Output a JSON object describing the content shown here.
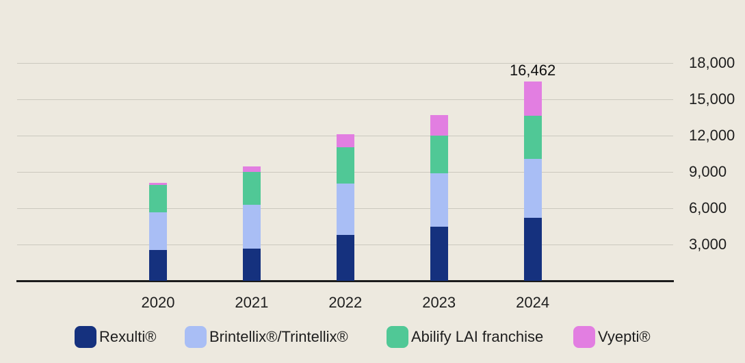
{
  "colors": {
    "background": "#EDE9DF",
    "gridline": "#CBC8BE",
    "axis_line": "#1B1B1B",
    "text": "#1E1E1E",
    "annotation_text": "#101010"
  },
  "chart_data": {
    "type": "bar",
    "stacked": true,
    "title": "",
    "xlabel": "",
    "ylabel": "",
    "categories": [
      "2020",
      "2021",
      "2022",
      "2023",
      "2024"
    ],
    "series": [
      {
        "name": "Rexulti®",
        "slug": "rexulti",
        "color": "#15317E",
        "values": [
          2550,
          2680,
          3780,
          4490,
          5200
        ]
      },
      {
        "name": "Brintellix®/Trintellix®",
        "slug": "brintellix-trintellix",
        "color": "#A9BEF5",
        "values": [
          3100,
          3620,
          4280,
          4380,
          4900
        ]
      },
      {
        "name": "Abilify LAI franchise",
        "slug": "abilify-lai-franchise",
        "color": "#50C896",
        "values": [
          2270,
          2700,
          2990,
          3110,
          3530
        ]
      },
      {
        "name": "Vyepti®",
        "slug": "vyepti",
        "color": "#E27EE1",
        "values": [
          170,
          450,
          1070,
          1720,
          2832
        ]
      }
    ],
    "annotations": [
      {
        "category": "2024",
        "text": "16,462"
      }
    ],
    "y_axis": {
      "side": "right",
      "ylim": [
        0,
        18000
      ],
      "grid": true,
      "ticks": [
        {
          "value": 3000,
          "label": "3,000"
        },
        {
          "value": 6000,
          "label": "6,000"
        },
        {
          "value": 9000,
          "label": "9,000"
        },
        {
          "value": 12000,
          "label": "12,000"
        },
        {
          "value": 15000,
          "label": "15,000"
        },
        {
          "value": 18000,
          "label": "18,000"
        }
      ]
    },
    "legend_position": "bottom"
  }
}
